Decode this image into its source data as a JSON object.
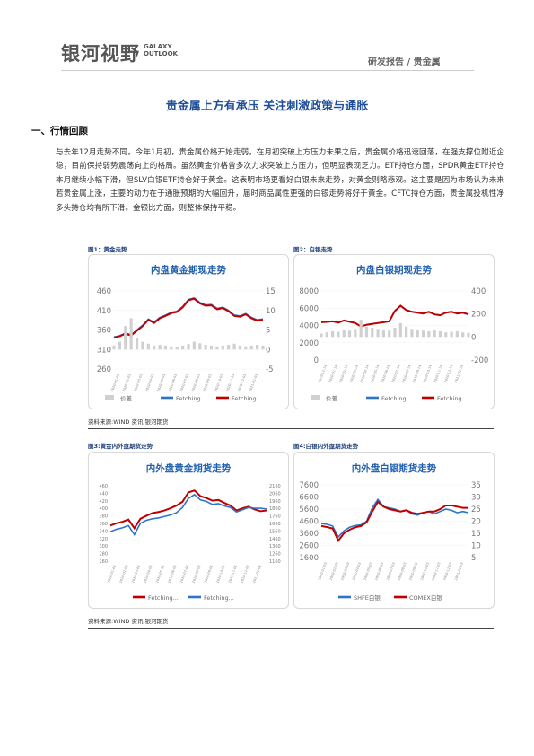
{
  "header": {
    "logo_cn": "银河视野",
    "logo_en_line1": "GALAXY",
    "logo_en_line2": "OUTLOOK",
    "right": "研发报告 / 贵金属"
  },
  "title": "贵金属上方有承压 关注刺激政策与通胀",
  "section": "一、行情回顾",
  "paragraph": "与去年12月走势不同，今年1月初，贵金属价格开始走弱，在月初突破上方压力未果之后，贵金属价格迅速回落，在强支撑位附近企稳，目前保持弱势震荡向上的格局。虽然黄金价格曾多次力求突破上方压力，但明显表现乏力。ETF持仓方面，SPDR黄金ETF持仓本月继续小幅下滑，但SLV白银ETF持仓好于黄金。这表明市场更看好白银未来走势，对黄金则略悲观。这主要是因为市场认为未来若贵金属上涨，主要的动力在于通胀预期的大幅回升，届时商品属性更强的白银走势将好于黄金。CFTC持仓方面，贵金属投机性净多头持仓均有所下滑。金银比方面，则整体保持平稳。",
  "figures": {
    "fig1_caption": "图1：黄金走势",
    "fig2_caption": "图2：白银走势",
    "fig3_caption": "图3:黄金内外盘期货走势",
    "fig4_caption": "图4:白银内外盘期货走势",
    "source1": "资料来源:WIND 资讯   银河期货",
    "source2": "资料来源:WIND 资讯   银河期货"
  },
  "colors": {
    "title": "#1f4e9a",
    "blue_series": "#2e75c8",
    "red_series": "#c00000",
    "spread_area": "#d9d9d9"
  },
  "chart_data": [
    {
      "type": "line",
      "title": "内盘黄金期现走势",
      "left_ticks": [
        "460",
        "410",
        "360",
        "310",
        "260"
      ],
      "right_ticks": [
        "15",
        "10",
        "5",
        "0",
        "-5"
      ],
      "ylim_left": [
        260,
        460
      ],
      "ylim_right": [
        -5,
        15
      ],
      "x_ticks": [
        "2020-01-03",
        "2020-02-03",
        "2020-03-03",
        "2020-04-03",
        "2020-05-03",
        "2020-06-03",
        "2020-07-03",
        "2020-08-03",
        "2020-09-03",
        "2020-10-03",
        "2020-11-03",
        "2020-12-03",
        "2021-01-03"
      ],
      "legend": [
        "价差",
        "Fetching...",
        "Fetching..."
      ],
      "series": [
        {
          "name": "Fetching...",
          "axis": "left",
          "color": "blue",
          "values": [
            342,
            345,
            352,
            348,
            360,
            372,
            388,
            380,
            392,
            398,
            405,
            408,
            420,
            438,
            442,
            430,
            424,
            425,
            415,
            418,
            410,
            398,
            396,
            402,
            392,
            386,
            388
          ]
        },
        {
          "name": "Fetching...",
          "axis": "left",
          "color": "red",
          "values": [
            340,
            344,
            350,
            346,
            358,
            370,
            386,
            378,
            390,
            396,
            403,
            406,
            418,
            436,
            440,
            428,
            422,
            423,
            413,
            416,
            408,
            396,
            394,
            400,
            390,
            384,
            386
          ]
        },
        {
          "name": "价差",
          "axis": "right",
          "color": "gray",
          "values": [
            1,
            2,
            6,
            8,
            3,
            2,
            1.5,
            1,
            1.2,
            1,
            0.8,
            0.6,
            1,
            1.4,
            2,
            1.6,
            1.2,
            1,
            0.8,
            1,
            1.2,
            1.5,
            1,
            0.8,
            1,
            1.2,
            1
          ]
        }
      ]
    },
    {
      "type": "line",
      "title": "内盘白银期现走势",
      "left_ticks": [
        "8000",
        "6000",
        "4000",
        "2000",
        "0"
      ],
      "right_ticks": [
        "400",
        "200",
        "0",
        "-200"
      ],
      "ylim_left": [
        0,
        8000
      ],
      "ylim_right": [
        -200,
        400
      ],
      "x_ticks": [
        "2019-12-14",
        "2020-01-14",
        "2020-02-14",
        "2020-03-14",
        "2020-04-14",
        "2020-05-14",
        "2020-06-14",
        "2020-07-14",
        "2020-08-14",
        "2020-09-14",
        "2020-10-14",
        "2020-11-14",
        "2020-12-14",
        "2021-01-14"
      ],
      "legend": [
        "价差",
        "Fetching...",
        "Fetching..."
      ],
      "series": [
        {
          "name": "Fetching...",
          "axis": "left",
          "color": "blue",
          "values": [
            4400,
            4450,
            4500,
            4350,
            4600,
            4450,
            4300,
            3900,
            4100,
            4200,
            4300,
            4400,
            4500,
            5700,
            6300,
            5800,
            5600,
            5500,
            5400,
            5600,
            5300,
            5200,
            5500,
            5600,
            5400,
            5500,
            5300
          ]
        },
        {
          "name": "Fetching...",
          "axis": "left",
          "color": "red",
          "values": [
            4380,
            4420,
            4480,
            4330,
            4580,
            4430,
            4280,
            3880,
            4080,
            4180,
            4280,
            4380,
            4480,
            5680,
            6280,
            5780,
            5580,
            5480,
            5380,
            5580,
            5280,
            5180,
            5480,
            5580,
            5380,
            5480,
            5280
          ]
        },
        {
          "name": "价差",
          "axis": "right",
          "color": "gray",
          "values": [
            30,
            40,
            50,
            45,
            60,
            55,
            70,
            150,
            90,
            80,
            70,
            60,
            55,
            80,
            120,
            90,
            70,
            60,
            55,
            50,
            60,
            50,
            40,
            45,
            50,
            40,
            35
          ]
        }
      ]
    },
    {
      "type": "line",
      "title": "内外盘黄金期货走势",
      "left_ticks": [
        "460",
        "440",
        "420",
        "400",
        "380",
        "360",
        "340",
        "320",
        "300",
        "280",
        "260"
      ],
      "right_ticks": [
        "2160",
        "2060",
        "1960",
        "1860",
        "1760",
        "1660",
        "1560",
        "1460",
        "1360",
        "1260",
        "1160"
      ],
      "ylim_left": [
        260,
        460
      ],
      "ylim_right": [
        1160,
        2160
      ],
      "x_ticks": [
        "2020-01-03",
        "2020-02-03",
        "2020-03-03",
        "2020-04-03",
        "2020-05-03",
        "2020-06-03",
        "2020-07-03",
        "2020-08-03",
        "2020-09-03",
        "2020-10-03",
        "2020-11-03",
        "2020-12-03",
        "2021-01-03"
      ],
      "legend": [
        "Fetching...",
        "Fetching..."
      ],
      "series": [
        {
          "name": "Fetching...",
          "axis": "left",
          "color": "red",
          "values": [
            352,
            358,
            362,
            368,
            345,
            370,
            378,
            385,
            388,
            392,
            398,
            405,
            415,
            440,
            445,
            430,
            425,
            418,
            420,
            412,
            405,
            392,
            398,
            402,
            395,
            390,
            392
          ]
        },
        {
          "name": "Fetching...",
          "axis": "right",
          "color": "blue",
          "values": [
            1540,
            1570,
            1590,
            1620,
            1500,
            1650,
            1690,
            1710,
            1720,
            1740,
            1760,
            1790,
            1860,
            1980,
            2030,
            1960,
            1940,
            1900,
            1910,
            1880,
            1860,
            1800,
            1830,
            1860,
            1850,
            1850,
            1840
          ]
        }
      ]
    },
    {
      "type": "line",
      "title": "内外盘白银期货走势",
      "left_ticks": [
        "7600",
        "6600",
        "5600",
        "4600",
        "3600",
        "2600",
        "1600"
      ],
      "right_ticks": [
        "35",
        "30",
        "25",
        "20",
        "15",
        "10",
        "5"
      ],
      "ylim_left": [
        1600,
        7600
      ],
      "ylim_right": [
        5,
        35
      ],
      "x_ticks": [
        "2020-01-03",
        "2020-02-03",
        "2020-03-03",
        "2020-04-03",
        "2020-05-03",
        "2020-06-03",
        "2020-07-03",
        "2020-08-03",
        "2020-09-03",
        "2020-10-03",
        "2020-11-03",
        "2020-12-03",
        "2021-01-03"
      ],
      "legend": [
        "SHFE白银",
        "COMEX白银"
      ],
      "series": [
        {
          "name": "SHFE白银",
          "axis": "left",
          "color": "blue",
          "values": [
            4400,
            4350,
            4200,
            3300,
            3800,
            4100,
            4250,
            4300,
            4600,
            5700,
            6400,
            5800,
            5700,
            5600,
            5400,
            5500,
            5200,
            5100,
            5300,
            5400,
            5200,
            5400,
            5600,
            5500,
            5300,
            5400,
            5300
          ]
        },
        {
          "name": "COMEX白银",
          "axis": "right",
          "color": "red",
          "values": [
            18,
            17.6,
            17,
            12,
            15,
            16.5,
            17.5,
            18,
            19.5,
            24,
            28,
            26,
            25,
            24.5,
            24,
            24.5,
            23.5,
            23,
            23.5,
            24,
            24,
            25,
            26.5,
            26.5,
            26,
            25.5,
            25.5
          ]
        }
      ]
    }
  ]
}
